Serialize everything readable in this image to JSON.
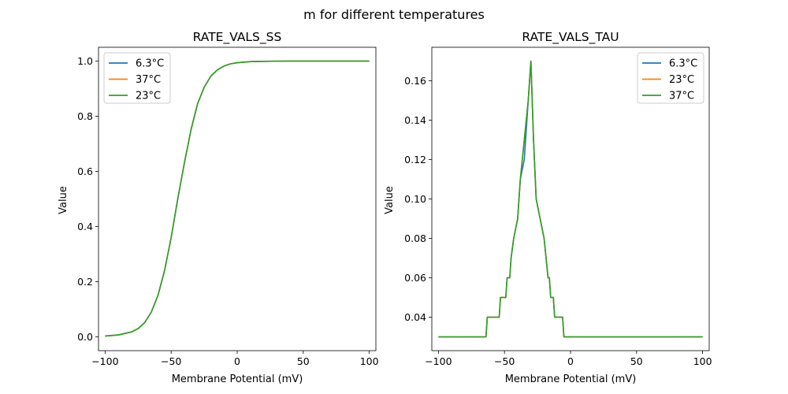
{
  "figure": {
    "suptitle": "m for different temperatures"
  },
  "chart_data": [
    {
      "type": "line",
      "title": "RATE_VALS_SS",
      "xlabel": "Membrane Potential (mV)",
      "ylabel": "Value",
      "xlim": [
        -105,
        105
      ],
      "ylim": [
        -0.05,
        1.05
      ],
      "xticks": [
        -100,
        -50,
        0,
        50,
        100
      ],
      "xtick_labels": [
        "−100",
        "−50",
        "0",
        "50",
        "100"
      ],
      "yticks": [
        0.0,
        0.2,
        0.4,
        0.6,
        0.8,
        1.0
      ],
      "ytick_labels": [
        "0.0",
        "0.2",
        "0.4",
        "0.6",
        "0.8",
        "1.0"
      ],
      "legend_position": "top-left",
      "x": [
        -100,
        -90,
        -80,
        -75,
        -70,
        -65,
        -60,
        -55,
        -50,
        -45,
        -40,
        -35,
        -30,
        -25,
        -20,
        -15,
        -10,
        -5,
        0,
        10,
        20,
        40,
        60,
        80,
        100
      ],
      "series": [
        {
          "name": "6.3°C",
          "color": "#1f77b4",
          "values": [
            0.003,
            0.007,
            0.018,
            0.03,
            0.052,
            0.09,
            0.15,
            0.24,
            0.36,
            0.5,
            0.63,
            0.75,
            0.845,
            0.905,
            0.945,
            0.968,
            0.982,
            0.99,
            0.994,
            0.998,
            0.999,
            1.0,
            1.0,
            1.0,
            1.0
          ]
        },
        {
          "name": "37°C",
          "color": "#ff7f0e",
          "values": [
            0.003,
            0.007,
            0.018,
            0.03,
            0.052,
            0.09,
            0.15,
            0.24,
            0.36,
            0.5,
            0.63,
            0.75,
            0.845,
            0.905,
            0.945,
            0.968,
            0.982,
            0.99,
            0.994,
            0.998,
            0.999,
            1.0,
            1.0,
            1.0,
            1.0
          ]
        },
        {
          "name": "23°C",
          "color": "#2ca02c",
          "values": [
            0.003,
            0.007,
            0.018,
            0.03,
            0.052,
            0.09,
            0.15,
            0.24,
            0.36,
            0.5,
            0.63,
            0.75,
            0.845,
            0.905,
            0.945,
            0.968,
            0.982,
            0.99,
            0.994,
            0.998,
            0.999,
            1.0,
            1.0,
            1.0,
            1.0
          ]
        }
      ]
    },
    {
      "type": "line",
      "title": "RATE_VALS_TAU",
      "xlabel": "Membrane Potential (mV)",
      "ylabel": "Value",
      "xlim": [
        -105,
        105
      ],
      "ylim": [
        0.023,
        0.177
      ],
      "xticks": [
        -100,
        -50,
        0,
        50,
        100
      ],
      "xtick_labels": [
        "−100",
        "−50",
        "0",
        "50",
        "100"
      ],
      "yticks": [
        0.04,
        0.06,
        0.08,
        0.1,
        0.12,
        0.14,
        0.16
      ],
      "ytick_labels": [
        "0.04",
        "0.06",
        "0.08",
        "0.10",
        "0.12",
        "0.14",
        "0.16"
      ],
      "legend_position": "top-right",
      "x": [
        -100,
        -64,
        -63,
        -54,
        -53,
        -49,
        -48,
        -46,
        -45,
        -43,
        -40,
        -38,
        -35,
        -32,
        -30,
        -28,
        -26,
        -23,
        -20,
        -17,
        -16,
        -15,
        -13,
        -12,
        -6,
        -5,
        0,
        50,
        100
      ],
      "series": [
        {
          "name": "6.3°C",
          "color": "#1f77b4",
          "values": [
            0.03,
            0.03,
            0.04,
            0.04,
            0.05,
            0.05,
            0.06,
            0.06,
            0.07,
            0.08,
            0.09,
            0.11,
            0.12,
            0.15,
            0.17,
            0.13,
            0.1,
            0.09,
            0.08,
            0.06,
            0.06,
            0.05,
            0.05,
            0.04,
            0.04,
            0.03,
            0.03,
            0.03,
            0.03
          ]
        },
        {
          "name": "23°C",
          "color": "#ff7f0e",
          "values": [
            0.03,
            0.03,
            0.04,
            0.04,
            0.05,
            0.05,
            0.06,
            0.06,
            0.07,
            0.08,
            0.09,
            0.11,
            0.13,
            0.15,
            0.17,
            0.13,
            0.1,
            0.09,
            0.08,
            0.06,
            0.06,
            0.05,
            0.05,
            0.04,
            0.04,
            0.03,
            0.03,
            0.03,
            0.03
          ]
        },
        {
          "name": "37°C",
          "color": "#2ca02c",
          "values": [
            0.03,
            0.03,
            0.04,
            0.04,
            0.05,
            0.05,
            0.06,
            0.06,
            0.07,
            0.08,
            0.09,
            0.11,
            0.13,
            0.15,
            0.17,
            0.13,
            0.1,
            0.09,
            0.08,
            0.06,
            0.06,
            0.05,
            0.05,
            0.04,
            0.04,
            0.03,
            0.03,
            0.03,
            0.03
          ]
        }
      ]
    }
  ]
}
